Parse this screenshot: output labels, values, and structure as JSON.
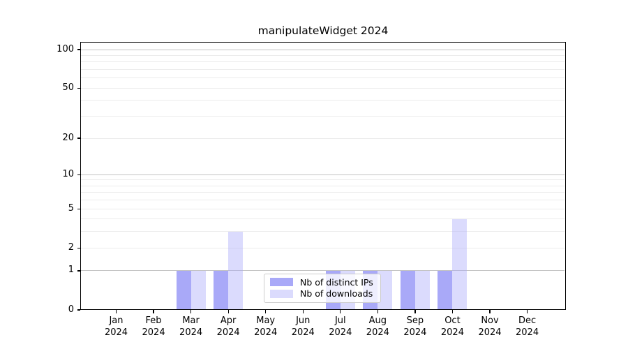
{
  "title": "manipulateWidget 2024",
  "chart_data": {
    "type": "bar",
    "title": "manipulateWidget 2024",
    "categories": [
      "Jan",
      "Feb",
      "Mar",
      "Apr",
      "May",
      "Jun",
      "Jul",
      "Aug",
      "Sep",
      "Oct",
      "Nov",
      "Dec"
    ],
    "category_year": "2024",
    "series": [
      {
        "name": "Nb of distinct IPs",
        "color": "#a9a9f8",
        "opacity": 1,
        "values": [
          0,
          0,
          1,
          1,
          0,
          0,
          1,
          1,
          1,
          1,
          0,
          0
        ]
      },
      {
        "name": "Nb of downloads",
        "color": "rgba(170,170,250,0.42)",
        "opacity": 1,
        "values": [
          0,
          0,
          1,
          3,
          0,
          0,
          1,
          1,
          1,
          4,
          0,
          0
        ]
      }
    ],
    "yscale": "log1p",
    "ylim": [
      0,
      115
    ],
    "yticks": [
      0,
      1,
      2,
      5,
      10,
      20,
      50,
      100
    ],
    "major_gridlines": [
      1,
      10,
      100
    ],
    "minor_gridlines": [
      2,
      3,
      4,
      5,
      6,
      7,
      8,
      9,
      20,
      30,
      40,
      50,
      60,
      70,
      80,
      90
    ],
    "grid": true,
    "legend_position": "lower-center-inside",
    "colors": {
      "major_grid": "#c3c3c3",
      "minor_grid": "#ececec",
      "axis": "#000000"
    }
  }
}
